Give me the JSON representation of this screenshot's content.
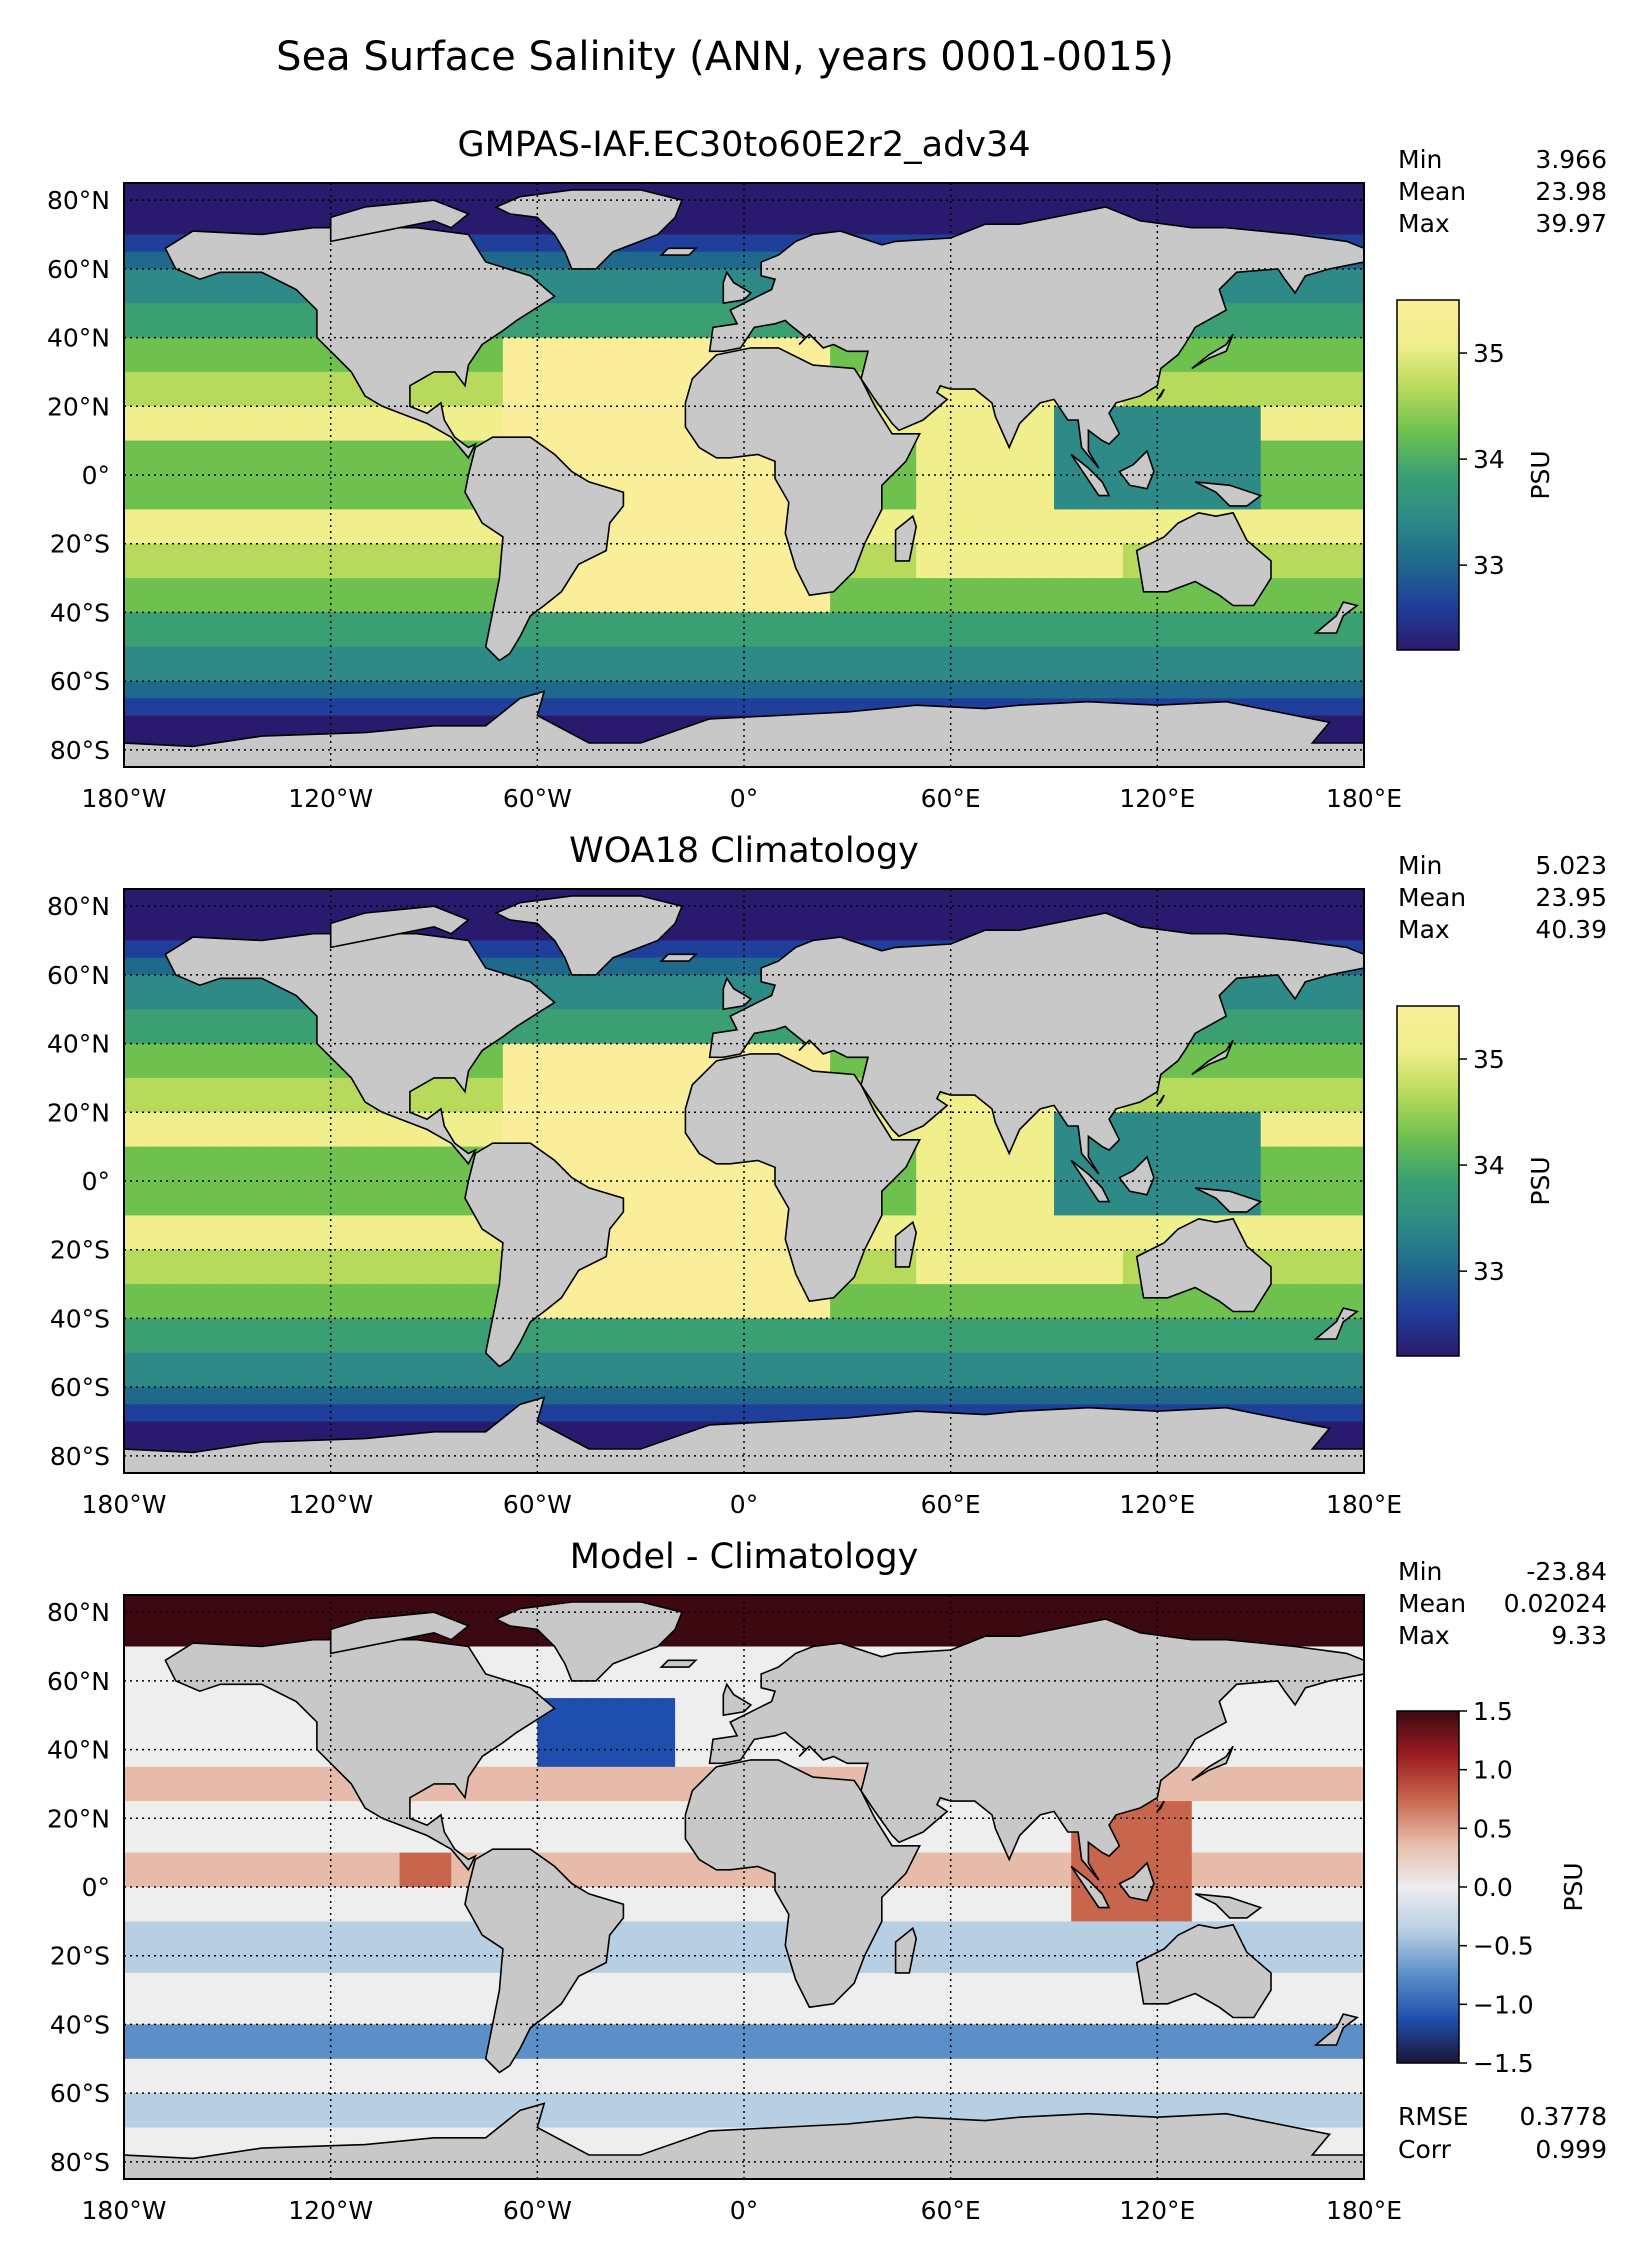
{
  "figure": {
    "suptitle": "Sea Surface Salinity (ANN, years 0001-0015)"
  },
  "axes": {
    "lon_ticks": [
      "180°W",
      "120°W",
      "60°W",
      "0°",
      "60°E",
      "120°E",
      "180°E"
    ],
    "lat_ticks": [
      "80°N",
      "60°N",
      "40°N",
      "20°N",
      "0°",
      "20°S",
      "40°S",
      "60°S",
      "80°S"
    ]
  },
  "colors": {
    "land": "#c8c8c8",
    "grid": "#000000",
    "haline": [
      "#2a1a6e",
      "#1f3f9a",
      "#1f6a8c",
      "#2d8a86",
      "#3aa073",
      "#6ec14f",
      "#b8da5c",
      "#f0ef8c",
      "#fbee9a"
    ],
    "balance": [
      "#1a1537",
      "#1f4fae",
      "#5b8fc7",
      "#b7cfe3",
      "#eeeeee",
      "#e6bba9",
      "#c7664d",
      "#9b1c22",
      "#3c0910"
    ]
  },
  "chart_data": [
    {
      "type": "heatmap",
      "title": "GMPAS-IAF.EC30to60E2r2_adv34",
      "colorbar": {
        "label": "PSU",
        "ticks": [
          "35",
          "34",
          "33"
        ],
        "range": [
          32.2,
          35.5
        ],
        "colormap": "haline"
      },
      "stats": [
        {
          "label": "Min",
          "value": "3.966"
        },
        {
          "label": "Mean",
          "value": "23.98"
        },
        {
          "label": "Max",
          "value": "39.97"
        }
      ]
    },
    {
      "type": "heatmap",
      "title": "WOA18 Climatology",
      "colorbar": {
        "label": "PSU",
        "ticks": [
          "35",
          "34",
          "33"
        ],
        "range": [
          32.2,
          35.5
        ],
        "colormap": "haline"
      },
      "stats": [
        {
          "label": "Min",
          "value": "5.023"
        },
        {
          "label": "Mean",
          "value": "23.95"
        },
        {
          "label": "Max",
          "value": "40.39"
        }
      ]
    },
    {
      "type": "heatmap",
      "title": "Model - Climatology",
      "colorbar": {
        "label": "PSU",
        "ticks": [
          "1.5",
          "1.0",
          "0.5",
          "0.0",
          "−0.5",
          "−1.0",
          "−1.5"
        ],
        "range": [
          -1.5,
          1.5
        ],
        "colormap": "balance"
      },
      "stats": [
        {
          "label": "Min",
          "value": "-23.84"
        },
        {
          "label": "Mean",
          "value": "0.02024"
        },
        {
          "label": "Max",
          "value": "9.33"
        }
      ],
      "footer_stats": [
        {
          "label": "RMSE",
          "value": "0.3778"
        },
        {
          "label": "Corr",
          "value": "0.999"
        }
      ]
    }
  ]
}
